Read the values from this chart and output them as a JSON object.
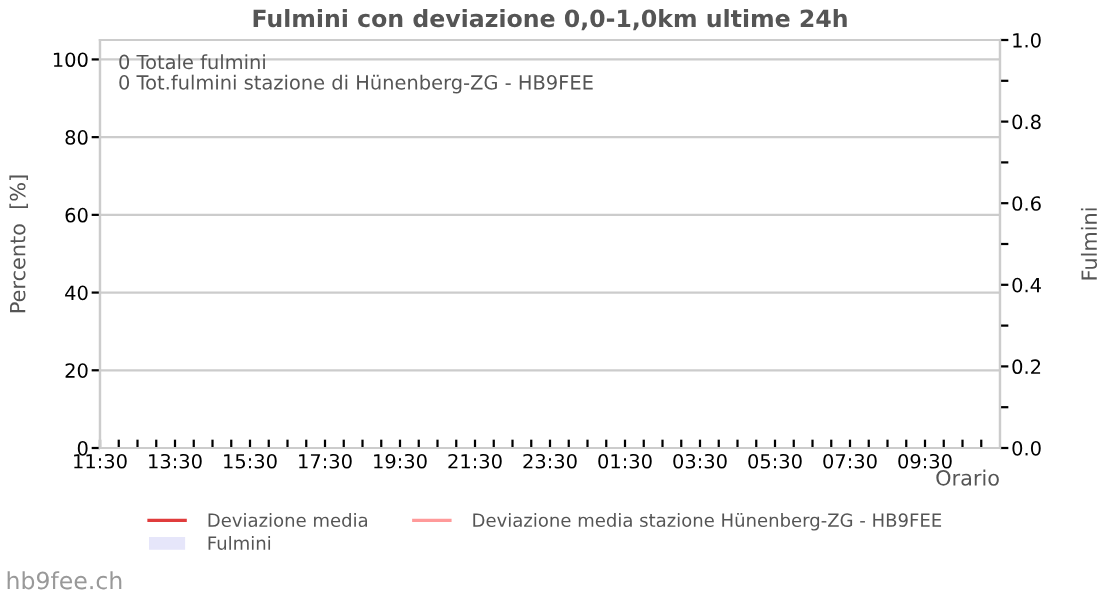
{
  "chart_data": {
    "type": "line",
    "title": "Fulmini con deviazione 0,0-1,0km ultime 24h",
    "xlabel": "Orario",
    "ylabel": "Percento  [%]",
    "y2label": "Fulmini",
    "annotations": [
      "0 Totale fulmini",
      "0 Tot.fulmini stazione di Hünenberg-ZG - HB9FEE",
      "hb9fee.ch"
    ],
    "categories": [
      "11:30",
      null,
      null,
      null,
      "13:30",
      null,
      null,
      null,
      "15:30",
      null,
      null,
      null,
      "17:30",
      null,
      null,
      null,
      "19:30",
      null,
      null,
      null,
      "21:30",
      null,
      null,
      null,
      "23:30",
      null,
      null,
      null,
      "01:30",
      null,
      null,
      null,
      "03:30",
      null,
      null,
      null,
      "05:30",
      null,
      null,
      null,
      "07:30",
      null,
      null,
      null,
      "09:30",
      null,
      null,
      null
    ],
    "ylim": [
      0,
      105
    ],
    "yticks": [
      0,
      20,
      40,
      60,
      80,
      100
    ],
    "y2lim": [
      0,
      1
    ],
    "y2ticks": [
      {
        "value": 0,
        "label": "0.0"
      },
      {
        "value": 0.1,
        "label": null
      },
      {
        "value": 0.2,
        "label": "0.2"
      },
      {
        "value": 0.3,
        "label": null
      },
      {
        "value": 0.4,
        "label": "0.4"
      },
      {
        "value": 0.5,
        "label": null
      },
      {
        "value": 0.6,
        "label": "0.6"
      },
      {
        "value": 0.7,
        "label": null
      },
      {
        "value": 0.8,
        "label": "0.8"
      },
      {
        "value": 0.9,
        "label": null
      },
      {
        "value": 1,
        "label": "1.0"
      }
    ],
    "grid": "y",
    "legend": "bottom",
    "series": [
      {
        "name": "Deviazione media",
        "color": "#e03c3c",
        "values": [
          null,
          null,
          null,
          null,
          null,
          null,
          null,
          null,
          null,
          null,
          null,
          null,
          null,
          null,
          null,
          null,
          null,
          null,
          null,
          null,
          null,
          null,
          null,
          null,
          null,
          null,
          null,
          null,
          null,
          null,
          null,
          null,
          null,
          null,
          null,
          null,
          null,
          null,
          null,
          null,
          null,
          null,
          null,
          null,
          null,
          null,
          null,
          null
        ]
      },
      {
        "name": "Deviazione media stazione Hünenberg-ZG - HB9FEE",
        "color": "#ff9a9a",
        "values": [
          null,
          null,
          null,
          null,
          null,
          null,
          null,
          null,
          null,
          null,
          null,
          null,
          null,
          null,
          null,
          null,
          null,
          null,
          null,
          null,
          null,
          null,
          null,
          null,
          null,
          null,
          null,
          null,
          null,
          null,
          null,
          null,
          null,
          null,
          null,
          null,
          null,
          null,
          null,
          null,
          null,
          null,
          null,
          null,
          null,
          null,
          null,
          null
        ]
      },
      {
        "name": "Fulmini",
        "color": "#e6e6fa",
        "type": "bar",
        "values": [
          null,
          null,
          null,
          null,
          null,
          null,
          null,
          null,
          null,
          null,
          null,
          null,
          null,
          null,
          null,
          null,
          null,
          null,
          null,
          null,
          null,
          null,
          null,
          null,
          null,
          null,
          null,
          null,
          null,
          null,
          null,
          null,
          null,
          null,
          null,
          null,
          null,
          null,
          null,
          null,
          null,
          null,
          null,
          null,
          null,
          null,
          null,
          null
        ]
      }
    ]
  }
}
